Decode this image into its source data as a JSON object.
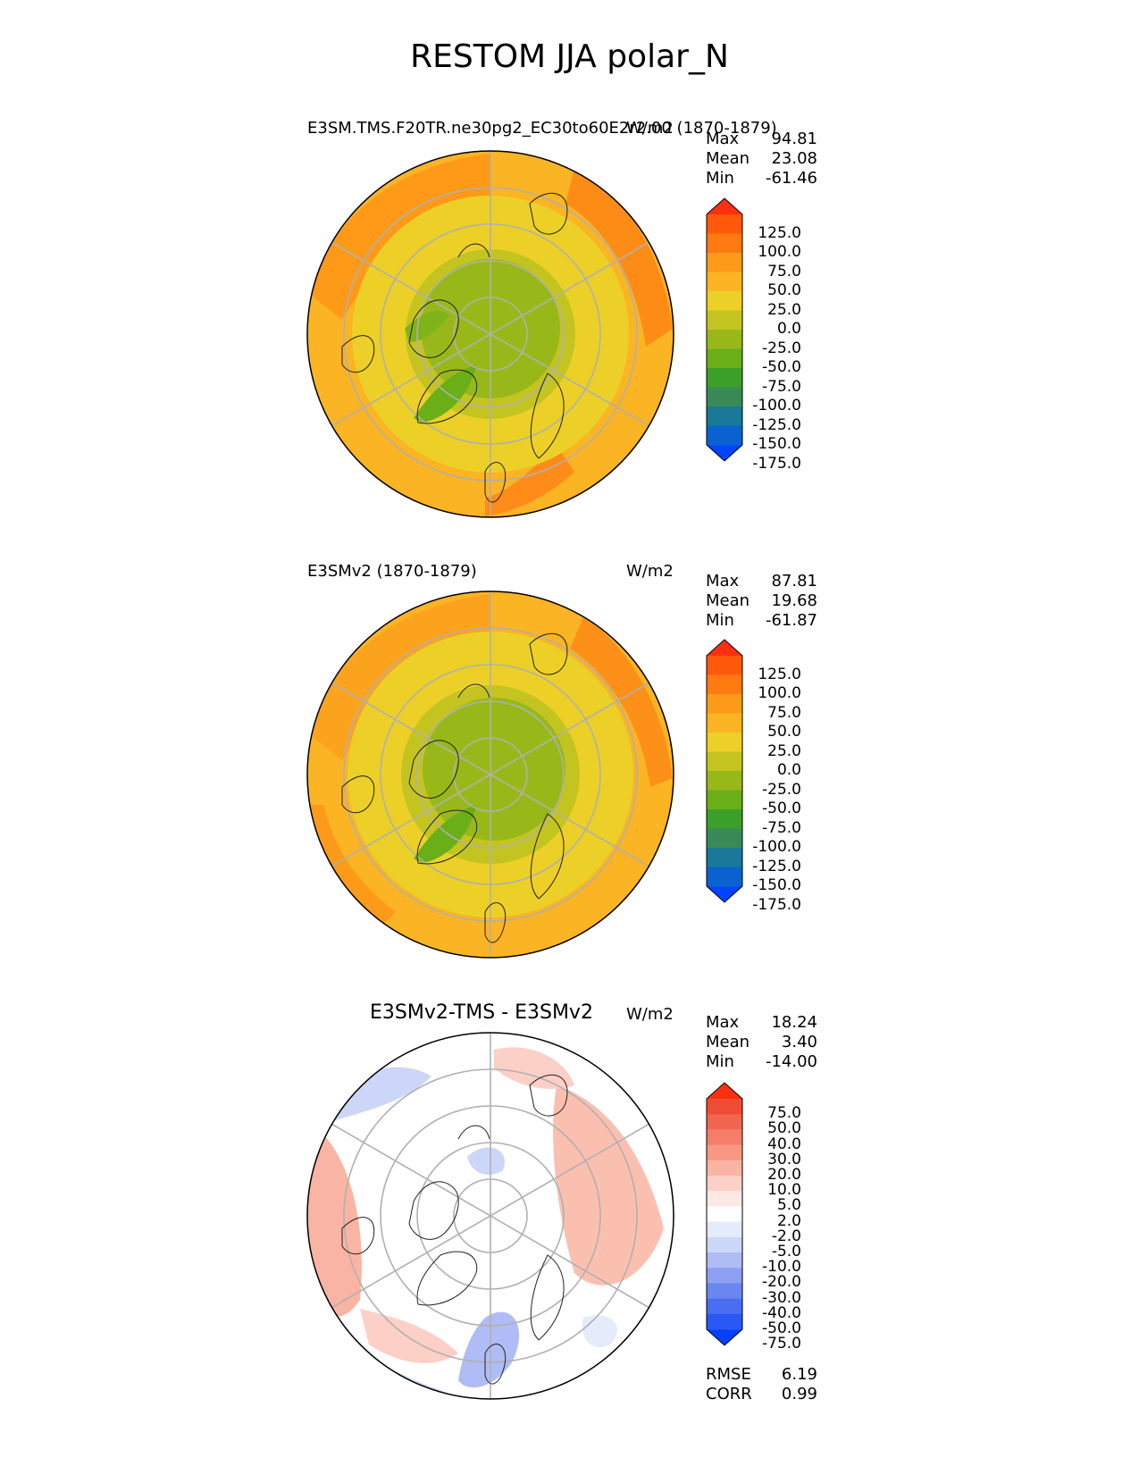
{
  "title": "RESTOM JJA polar_N",
  "panels": [
    {
      "id": "test",
      "left_title": "E3SM.TMS.F20TR.ne30pg2_EC30to60E2r2.00 (1870-1879)",
      "units": "W/m2",
      "stats": [
        {
          "label": "Max",
          "value": "94.81"
        },
        {
          "label": "Mean",
          "value": "23.08"
        },
        {
          "label": "Min",
          "value": "-61.46"
        }
      ],
      "colorbar_ticks": [
        "125.0",
        "100.0",
        "75.0",
        "50.0",
        "25.0",
        "0.0",
        "-25.0",
        "-50.0",
        "-75.0",
        "-100.0",
        "-125.0",
        "-150.0",
        "-175.0"
      ]
    },
    {
      "id": "reference",
      "left_title": "E3SMv2 (1870-1879)",
      "units": "W/m2",
      "stats": [
        {
          "label": "Max",
          "value": "87.81"
        },
        {
          "label": "Mean",
          "value": "19.68"
        },
        {
          "label": "Min",
          "value": "-61.87"
        }
      ],
      "colorbar_ticks": [
        "125.0",
        "100.0",
        "75.0",
        "50.0",
        "25.0",
        "0.0",
        "-25.0",
        "-50.0",
        "-75.0",
        "-100.0",
        "-125.0",
        "-150.0",
        "-175.0"
      ]
    },
    {
      "id": "difference",
      "center_title": "E3SMv2-TMS - E3SMv2",
      "units": "W/m2",
      "stats": [
        {
          "label": "Max",
          "value": "18.24"
        },
        {
          "label": "Mean",
          "value": "3.40"
        },
        {
          "label": "Min",
          "value": "-14.00"
        }
      ],
      "colorbar_ticks": [
        "75.0",
        "50.0",
        "40.0",
        "30.0",
        "20.0",
        "10.0",
        "5.0",
        "2.0",
        "-2.0",
        "-5.0",
        "-10.0",
        "-20.0",
        "-30.0",
        "-40.0",
        "-50.0",
        "-75.0"
      ],
      "metrics": [
        {
          "label": "RMSE",
          "value": "6.19"
        },
        {
          "label": "CORR",
          "value": "0.99"
        }
      ]
    }
  ],
  "colors": {
    "field_scale": [
      "#0044ff",
      "#0a62d0",
      "#1a7898",
      "#3a8a58",
      "#3aa02a",
      "#6aae18",
      "#98b81a",
      "#c4c420",
      "#ecd028",
      "#fbb423",
      "#fd9a1a",
      "#ff7a10",
      "#ff5a0c",
      "#ff3010"
    ],
    "diff_scale": [
      "#0840ff",
      "#2a58f4",
      "#4a6ef2",
      "#6a86f0",
      "#8ea0f2",
      "#afbcf5",
      "#ccd6f8",
      "#e4ebfb",
      "#ffffff",
      "#fde8e4",
      "#fcd0c6",
      "#fab4a4",
      "#f89884",
      "#f57e68",
      "#f26650",
      "#ef4c36",
      "#ff3010"
    ]
  },
  "chart_data": [
    {
      "type": "heatmap",
      "projection": "north polar stereographic",
      "title": "E3SM.TMS.F20TR.ne30pg2_EC30to60E2r2.00 (1870-1879)",
      "units": "W/m2",
      "max": 94.81,
      "mean": 23.08,
      "min": -61.46,
      "levels": [
        -175,
        -150,
        -125,
        -100,
        -75,
        -50,
        -25,
        0,
        25,
        50,
        75,
        100,
        125
      ]
    },
    {
      "type": "heatmap",
      "projection": "north polar stereographic",
      "title": "E3SMv2 (1870-1879)",
      "units": "W/m2",
      "max": 87.81,
      "mean": 19.68,
      "min": -61.87,
      "levels": [
        -175,
        -150,
        -125,
        -100,
        -75,
        -50,
        -25,
        0,
        25,
        50,
        75,
        100,
        125
      ]
    },
    {
      "type": "heatmap",
      "projection": "north polar stereographic",
      "title": "E3SMv2-TMS - E3SMv2",
      "units": "W/m2",
      "max": 18.24,
      "mean": 3.4,
      "min": -14.0,
      "rmse": 6.19,
      "corr": 0.99,
      "levels": [
        -75,
        -50,
        -40,
        -30,
        -20,
        -10,
        -5,
        -2,
        2,
        5,
        10,
        20,
        30,
        40,
        50,
        75
      ]
    }
  ]
}
